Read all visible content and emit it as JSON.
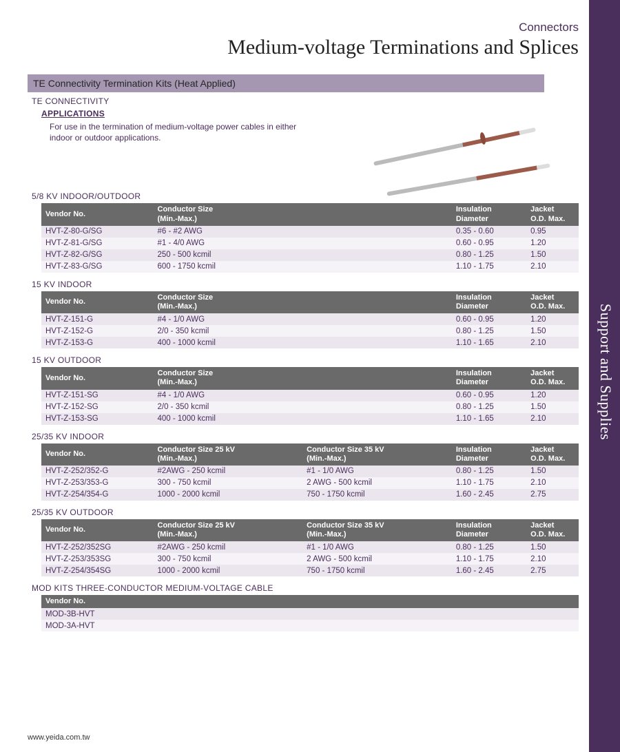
{
  "header": {
    "category": "Connectors",
    "title": "Medium-voltage Terminations and Splices"
  },
  "banner": "TE Connectivity Termination Kits (Heat Applied)",
  "te_label": "TE CONNECTIVITY",
  "applications": {
    "heading": "APPLICATIONS",
    "text": "For use in the termination of medium-voltage power cables in either indoor or outdoor applications."
  },
  "side_label": "Support and Supplies",
  "footer": "www.yeida.com.tw",
  "col_labels": {
    "vendor": "Vendor No.",
    "cond": "Conductor Size",
    "cond25": "Conductor Size 25 kV",
    "cond35": "Conductor Size 35 kV",
    "minmax": "(Min.-Max.)",
    "ins": "Insulation",
    "diam": "Diameter",
    "jack": "Jacket",
    "od": "O.D. Max."
  },
  "tables": [
    {
      "title": "5/8 KV INDOOR/OUTDOOR",
      "cols": [
        "vendor",
        "cond",
        "ins",
        "jack"
      ],
      "rows": [
        [
          "HVT-Z-80-G/SG",
          "#6 - #2 AWG",
          "0.35 - 0.60",
          "0.95"
        ],
        [
          "HVT-Z-81-G/SG",
          "#1 - 4/0 AWG",
          "0.60 - 0.95",
          "1.20"
        ],
        [
          "HVT-Z-82-G/SG",
          "250 - 500 kcmil",
          "0.80 - 1.25",
          "1.50"
        ],
        [
          "HVT-Z-83-G/SG",
          "600 - 1750 kcmil",
          "1.10 - 1.75",
          "2.10"
        ]
      ]
    },
    {
      "title": "15 KV INDOOR",
      "cols": [
        "vendor",
        "cond",
        "ins",
        "jack"
      ],
      "rows": [
        [
          "HVT-Z-151-G",
          "#4 - 1/0 AWG",
          "0.60 - 0.95",
          "1.20"
        ],
        [
          "HVT-Z-152-G",
          "2/0 - 350 kcmil",
          "0.80 - 1.25",
          "1.50"
        ],
        [
          "HVT-Z-153-G",
          "400 - 1000 kcmil",
          "1.10 - 1.65",
          "2.10"
        ]
      ]
    },
    {
      "title": "15 KV OUTDOOR",
      "cols": [
        "vendor",
        "cond",
        "ins",
        "jack"
      ],
      "rows": [
        [
          "HVT-Z-151-SG",
          "#4 - 1/0 AWG",
          "0.60 - 0.95",
          "1.20"
        ],
        [
          "HVT-Z-152-SG",
          "2/0 - 350 kcmil",
          "0.80 - 1.25",
          "1.50"
        ],
        [
          "HVT-Z-153-SG",
          "400 - 1000 kcmil",
          "1.10 - 1.65",
          "2.10"
        ]
      ]
    },
    {
      "title": "25/35 KV INDOOR",
      "cols": [
        "vendor",
        "cond25",
        "cond35",
        "ins",
        "jack"
      ],
      "rows": [
        [
          "HVT-Z-252/352-G",
          "#2AWG - 250 kcmil",
          "#1 - 1/0 AWG",
          "0.80 - 1.25",
          "1.50"
        ],
        [
          "HVT-Z-253/353-G",
          "300 - 750 kcmil",
          "2 AWG - 500 kcmil",
          "1.10 - 1.75",
          "2.10"
        ],
        [
          "HVT-Z-254/354-G",
          "1000 - 2000 kcmil",
          "750 - 1750 kcmil",
          "1.60 - 2.45",
          "2.75"
        ]
      ]
    },
    {
      "title": "25/35 KV OUTDOOR",
      "cols": [
        "vendor",
        "cond25",
        "cond35",
        "ins",
        "jack"
      ],
      "rows": [
        [
          "HVT-Z-252/352SG",
          "#2AWG - 250 kcmil",
          "#1 - 1/0 AWG",
          "0.80 - 1.25",
          "1.50"
        ],
        [
          "HVT-Z-253/353SG",
          "300 - 750 kcmil",
          "2 AWG - 500 kcmil",
          "1.10 - 1.75",
          "2.10"
        ],
        [
          "HVT-Z-254/354SG",
          "1000 - 2000 kcmil",
          "750 - 1750 kcmil",
          "1.60 - 2.45",
          "2.75"
        ]
      ]
    },
    {
      "title": "MOD KITS THREE-CONDUCTOR MEDIUM-VOLTAGE CABLE",
      "cols": [
        "vendor"
      ],
      "rows": [
        [
          "MOD-3B-HVT"
        ],
        [
          "MOD-3A-HVT"
        ]
      ]
    }
  ]
}
